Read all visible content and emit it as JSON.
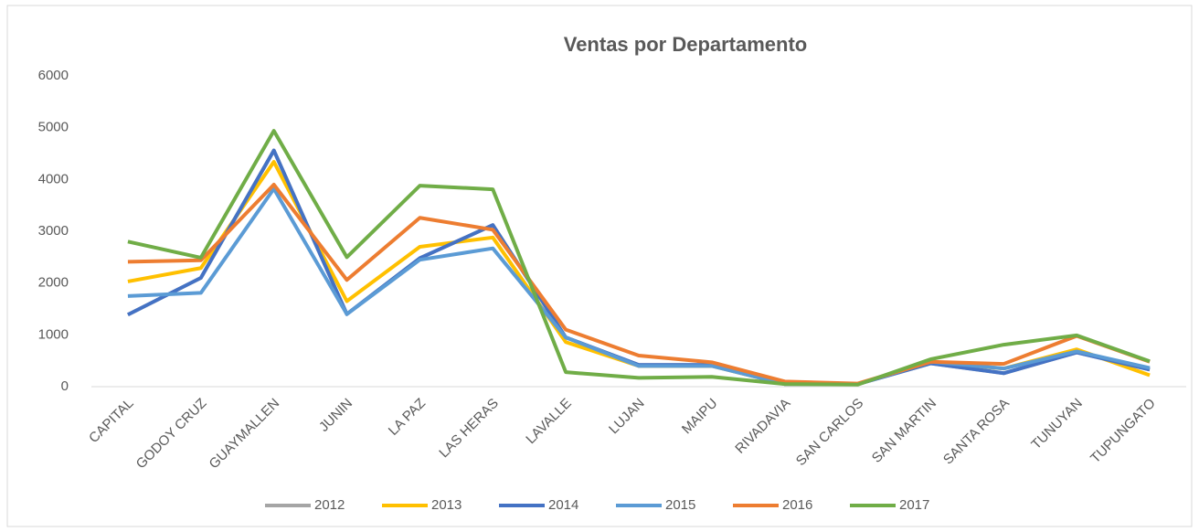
{
  "chart_data": {
    "type": "line",
    "title": "Ventas por Departamento",
    "categories": [
      "CAPITAL",
      "GODOY CRUZ",
      "GUAYMALLEN",
      "JUNIN",
      "LA PAZ",
      "LAS HERAS",
      "LAVALLE",
      "LUJAN",
      "MAIPU",
      "RIVADAVIA",
      "SAN CARLOS",
      "SAN MARTIN",
      "SANTA ROSA",
      "TUNUYAN",
      "TUPUNGATO"
    ],
    "series": [
      {
        "name": "2012",
        "color": "#a5a5a5",
        "values": [
          1390,
          2100,
          4560,
          1400,
          2480,
          3120,
          950,
          420,
          420,
          50,
          50,
          450,
          260,
          660,
          330
        ]
      },
      {
        "name": "2013",
        "color": "#ffc000",
        "values": [
          2030,
          2290,
          4340,
          1650,
          2700,
          2880,
          860,
          400,
          400,
          50,
          50,
          470,
          350,
          720,
          220
        ]
      },
      {
        "name": "2014",
        "color": "#4472c4",
        "values": [
          1390,
          2100,
          4560,
          1400,
          2480,
          3120,
          950,
          420,
          420,
          50,
          50,
          450,
          260,
          660,
          330
        ]
      },
      {
        "name": "2015",
        "color": "#5b9bd5",
        "values": [
          1750,
          1810,
          3820,
          1400,
          2450,
          2670,
          950,
          400,
          400,
          50,
          50,
          480,
          350,
          680,
          360
        ]
      },
      {
        "name": "2016",
        "color": "#ed7d31",
        "values": [
          2410,
          2440,
          3900,
          2060,
          3260,
          3030,
          1100,
          600,
          470,
          100,
          60,
          480,
          440,
          980,
          480
        ]
      },
      {
        "name": "2017",
        "color": "#70ad47",
        "values": [
          2800,
          2490,
          4940,
          2500,
          3880,
          3810,
          280,
          170,
          190,
          50,
          40,
          530,
          810,
          990,
          490
        ]
      }
    ],
    "ylim": [
      0,
      6000
    ],
    "yticks": [
      0,
      1000,
      2000,
      3000,
      4000,
      5000,
      6000
    ],
    "grid": false,
    "legend": "bottom"
  }
}
